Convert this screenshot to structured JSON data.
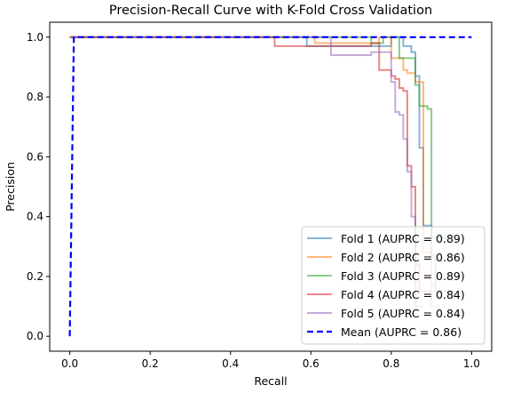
{
  "chart_data": {
    "type": "line",
    "title": "Precision-Recall Curve with K-Fold Cross Validation",
    "xlabel": "Recall",
    "ylabel": "Precision",
    "xlim": [
      -0.05,
      1.05
    ],
    "ylim": [
      -0.05,
      1.05
    ],
    "xticks": [
      0.0,
      0.2,
      0.4,
      0.6,
      0.8,
      1.0
    ],
    "yticks": [
      0.0,
      0.2,
      0.4,
      0.6,
      0.8,
      1.0
    ],
    "xtick_labels": [
      "0.0",
      "0.2",
      "0.4",
      "0.6",
      "0.8",
      "1.0"
    ],
    "ytick_labels": [
      "0.0",
      "0.2",
      "0.4",
      "0.6",
      "0.8",
      "1.0"
    ],
    "legend_position": "lower-right",
    "grid": false,
    "series": [
      {
        "name": "Fold 1 (AUPRC = 0.89)",
        "color": "#1f77b4",
        "style": "solid",
        "x": [
          0.0,
          0.59,
          0.59,
          0.8,
          0.8,
          0.83,
          0.83,
          0.85,
          0.85,
          0.86,
          0.86,
          0.87,
          0.87,
          0.88,
          0.88,
          0.9,
          0.9,
          0.91,
          0.91,
          0.95
        ],
        "y": [
          1.0,
          1.0,
          0.97,
          0.97,
          1.0,
          1.0,
          0.97,
          0.97,
          0.95,
          0.95,
          0.87,
          0.87,
          0.63,
          0.63,
          0.37,
          0.37,
          0.27,
          0.27,
          0.15,
          0.15
        ]
      },
      {
        "name": "Fold 2 (AUPRC = 0.86)",
        "color": "#ff7f0e",
        "style": "solid",
        "x": [
          0.0,
          0.61,
          0.61,
          0.77,
          0.77,
          0.8,
          0.8,
          0.83,
          0.83,
          0.84,
          0.84,
          0.86,
          0.86,
          0.88,
          0.88,
          0.9,
          0.9,
          0.92
        ],
        "y": [
          1.0,
          1.0,
          0.98,
          0.98,
          1.0,
          1.0,
          0.93,
          0.93,
          0.89,
          0.89,
          0.88,
          0.88,
          0.85,
          0.85,
          0.28,
          0.28,
          0.1,
          0.1
        ]
      },
      {
        "name": "Fold 3 (AUPRC = 0.89)",
        "color": "#2ca02c",
        "style": "solid",
        "x": [
          0.0,
          0.75,
          0.75,
          0.78,
          0.78,
          0.82,
          0.82,
          0.84,
          0.84,
          0.85,
          0.85,
          0.86,
          0.86,
          0.87,
          0.87,
          0.89,
          0.89,
          0.9,
          0.9,
          0.94
        ],
        "y": [
          1.0,
          1.0,
          0.98,
          0.98,
          1.0,
          1.0,
          0.93,
          0.93,
          0.93,
          0.93,
          0.93,
          0.93,
          0.84,
          0.84,
          0.77,
          0.77,
          0.76,
          0.76,
          0.33,
          0.33
        ]
      },
      {
        "name": "Fold 4 (AUPRC = 0.84)",
        "color": "#d62728",
        "style": "solid",
        "x": [
          0.0,
          0.51,
          0.51,
          0.75,
          0.75,
          0.77,
          0.77,
          0.8,
          0.8,
          0.81,
          0.81,
          0.82,
          0.82,
          0.83,
          0.83,
          0.84,
          0.84,
          0.85,
          0.85,
          0.86,
          0.86,
          0.87,
          0.87,
          0.9
        ],
        "y": [
          1.0,
          1.0,
          0.97,
          0.97,
          0.98,
          0.98,
          0.89,
          0.89,
          0.87,
          0.87,
          0.86,
          0.86,
          0.83,
          0.83,
          0.82,
          0.82,
          0.57,
          0.57,
          0.5,
          0.5,
          0.24,
          0.24,
          0.15,
          0.15
        ]
      },
      {
        "name": "Fold 5 (AUPRC = 0.84)",
        "color": "#9467bd",
        "style": "solid",
        "x": [
          0.0,
          0.65,
          0.65,
          0.75,
          0.75,
          0.8,
          0.8,
          0.81,
          0.81,
          0.82,
          0.82,
          0.83,
          0.83,
          0.84,
          0.84,
          0.85,
          0.85,
          0.86,
          0.86,
          0.88
        ],
        "y": [
          1.0,
          1.0,
          0.94,
          0.94,
          0.95,
          0.95,
          0.85,
          0.85,
          0.75,
          0.75,
          0.74,
          0.74,
          0.66,
          0.66,
          0.55,
          0.55,
          0.4,
          0.4,
          0.1,
          0.1
        ]
      },
      {
        "name": "Mean (AUPRC = 0.86)",
        "color": "#0000ff",
        "style": "dashed",
        "x": [
          0.0,
          0.01,
          0.02,
          0.05,
          0.2,
          0.4,
          0.6,
          0.8,
          1.0
        ],
        "y": [
          0.0,
          1.0,
          1.0,
          1.0,
          1.0,
          1.0,
          1.0,
          1.0,
          1.0
        ]
      }
    ]
  }
}
